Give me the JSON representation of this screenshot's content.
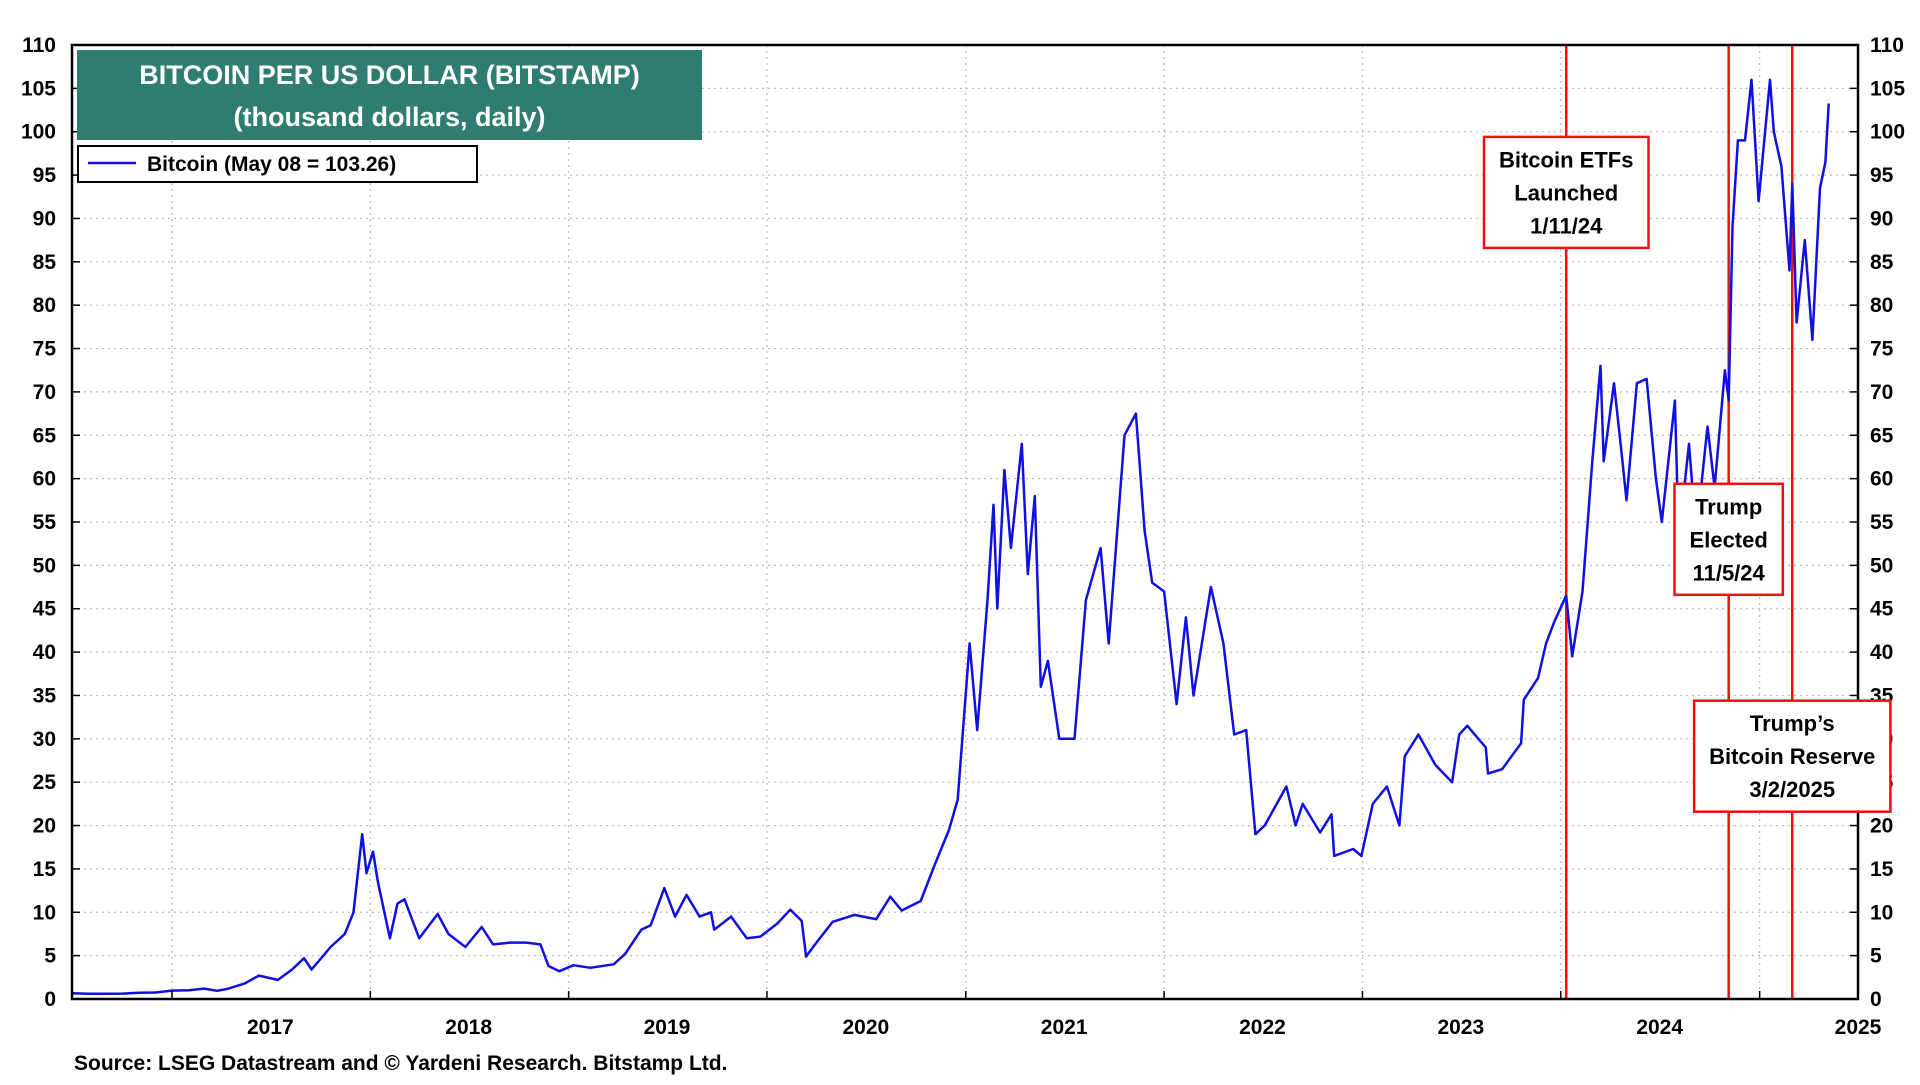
{
  "chart_data": {
    "type": "line",
    "title": "BITCOIN PER US DOLLAR (BITSTAMP)",
    "subtitle": "(thousand dollars, daily)",
    "source": "Source: LSEG Datastream and © Yardeni Research. Bitstamp Ltd.",
    "ylim": [
      0,
      110
    ],
    "y_ticks": [
      0,
      5,
      10,
      15,
      20,
      25,
      30,
      35,
      40,
      45,
      50,
      55,
      60,
      65,
      70,
      75,
      80,
      85,
      90,
      95,
      100,
      105,
      110
    ],
    "x_tick_labels": [
      "2017",
      "2018",
      "2019",
      "2020",
      "2021",
      "2022",
      "2023",
      "2024",
      "2025"
    ],
    "x_domain": [
      "2016-07-01",
      "2025-07-01"
    ],
    "grid": true,
    "legend_placement": "top-left",
    "colors": {
      "series": "#1010e0",
      "event_line": "#ee1111",
      "title_bg": "#2e7d6e",
      "title_text": "#ffffff"
    },
    "series": [
      {
        "name": "Bitcoin (May 08 = 103.26)",
        "points": [
          [
            "2016-07-01",
            0.67
          ],
          [
            "2016-08-01",
            0.6
          ],
          [
            "2016-09-01",
            0.6
          ],
          [
            "2016-10-01",
            0.62
          ],
          [
            "2016-11-01",
            0.72
          ],
          [
            "2016-12-01",
            0.75
          ],
          [
            "2017-01-01",
            0.97
          ],
          [
            "2017-02-01",
            1.0
          ],
          [
            "2017-03-01",
            1.2
          ],
          [
            "2017-03-25",
            0.95
          ],
          [
            "2017-04-15",
            1.2
          ],
          [
            "2017-05-15",
            1.8
          ],
          [
            "2017-06-10",
            2.7
          ],
          [
            "2017-07-15",
            2.2
          ],
          [
            "2017-08-10",
            3.4
          ],
          [
            "2017-09-01",
            4.7
          ],
          [
            "2017-09-15",
            3.4
          ],
          [
            "2017-10-20",
            6.0
          ],
          [
            "2017-11-15",
            7.5
          ],
          [
            "2017-12-01",
            10.0
          ],
          [
            "2017-12-17",
            19.0
          ],
          [
            "2017-12-25",
            14.5
          ],
          [
            "2018-01-06",
            17.0
          ],
          [
            "2018-01-15",
            13.5
          ],
          [
            "2018-02-06",
            7.0
          ],
          [
            "2018-02-20",
            11.0
          ],
          [
            "2018-03-05",
            11.5
          ],
          [
            "2018-04-01",
            7.0
          ],
          [
            "2018-05-05",
            9.8
          ],
          [
            "2018-05-25",
            7.5
          ],
          [
            "2018-06-25",
            6.0
          ],
          [
            "2018-07-25",
            8.3
          ],
          [
            "2018-08-15",
            6.3
          ],
          [
            "2018-09-15",
            6.5
          ],
          [
            "2018-10-15",
            6.5
          ],
          [
            "2018-11-10",
            6.3
          ],
          [
            "2018-11-25",
            3.8
          ],
          [
            "2018-12-15",
            3.2
          ],
          [
            "2019-01-10",
            3.9
          ],
          [
            "2019-02-10",
            3.6
          ],
          [
            "2019-03-25",
            4.0
          ],
          [
            "2019-04-15",
            5.2
          ],
          [
            "2019-05-15",
            8.0
          ],
          [
            "2019-06-01",
            8.5
          ],
          [
            "2019-06-26",
            12.8
          ],
          [
            "2019-07-16",
            9.5
          ],
          [
            "2019-08-06",
            12.0
          ],
          [
            "2019-08-30",
            9.5
          ],
          [
            "2019-09-20",
            10.0
          ],
          [
            "2019-09-26",
            8.0
          ],
          [
            "2019-10-27",
            9.5
          ],
          [
            "2019-11-25",
            7.0
          ],
          [
            "2019-12-20",
            7.2
          ],
          [
            "2020-01-20",
            8.7
          ],
          [
            "2020-02-13",
            10.3
          ],
          [
            "2020-03-05",
            9.0
          ],
          [
            "2020-03-13",
            4.9
          ],
          [
            "2020-04-01",
            6.5
          ],
          [
            "2020-05-01",
            8.9
          ],
          [
            "2020-06-10",
            9.7
          ],
          [
            "2020-07-20",
            9.2
          ],
          [
            "2020-08-15",
            11.8
          ],
          [
            "2020-09-05",
            10.2
          ],
          [
            "2020-10-10",
            11.3
          ],
          [
            "2020-11-05",
            15.5
          ],
          [
            "2020-12-01",
            19.5
          ],
          [
            "2020-12-17",
            23.0
          ],
          [
            "2021-01-08",
            41.0
          ],
          [
            "2021-01-22",
            31.0
          ],
          [
            "2021-02-10",
            46.0
          ],
          [
            "2021-02-21",
            57.0
          ],
          [
            "2021-02-28",
            45.0
          ],
          [
            "2021-03-13",
            61.0
          ],
          [
            "2021-03-25",
            52.0
          ],
          [
            "2021-04-14",
            64.0
          ],
          [
            "2021-04-25",
            49.0
          ],
          [
            "2021-05-08",
            58.0
          ],
          [
            "2021-05-19",
            36.0
          ],
          [
            "2021-06-01",
            39.0
          ],
          [
            "2021-06-22",
            30.0
          ],
          [
            "2021-07-20",
            30.0
          ],
          [
            "2021-08-10",
            46.0
          ],
          [
            "2021-09-06",
            52.0
          ],
          [
            "2021-09-21",
            41.0
          ],
          [
            "2021-10-20",
            65.0
          ],
          [
            "2021-11-10",
            67.5
          ],
          [
            "2021-11-26",
            54.0
          ],
          [
            "2021-12-10",
            48.0
          ],
          [
            "2022-01-01",
            47.0
          ],
          [
            "2022-01-24",
            34.0
          ],
          [
            "2022-02-10",
            44.0
          ],
          [
            "2022-02-24",
            35.0
          ],
          [
            "2022-03-28",
            47.5
          ],
          [
            "2022-04-20",
            41.0
          ],
          [
            "2022-05-10",
            30.5
          ],
          [
            "2022-06-01",
            31.0
          ],
          [
            "2022-06-18",
            19.0
          ],
          [
            "2022-07-05",
            20.0
          ],
          [
            "2022-08-14",
            24.5
          ],
          [
            "2022-08-31",
            20.0
          ],
          [
            "2022-09-13",
            22.5
          ],
          [
            "2022-10-15",
            19.2
          ],
          [
            "2022-11-05",
            21.3
          ],
          [
            "2022-11-10",
            16.5
          ],
          [
            "2022-12-15",
            17.3
          ],
          [
            "2022-12-30",
            16.5
          ],
          [
            "2023-01-20",
            22.5
          ],
          [
            "2023-02-15",
            24.5
          ],
          [
            "2023-03-10",
            20.0
          ],
          [
            "2023-03-20",
            28.0
          ],
          [
            "2023-04-14",
            30.5
          ],
          [
            "2023-05-15",
            27.0
          ],
          [
            "2023-06-15",
            25.0
          ],
          [
            "2023-06-28",
            30.5
          ],
          [
            "2023-07-13",
            31.5
          ],
          [
            "2023-08-16",
            29.0
          ],
          [
            "2023-08-20",
            26.0
          ],
          [
            "2023-09-15",
            26.5
          ],
          [
            "2023-10-20",
            29.5
          ],
          [
            "2023-10-25",
            34.5
          ],
          [
            "2023-11-20",
            37.0
          ],
          [
            "2023-12-05",
            41.0
          ],
          [
            "2023-12-20",
            43.5
          ],
          [
            "2024-01-11",
            46.5
          ],
          [
            "2024-01-22",
            39.5
          ],
          [
            "2024-02-10",
            47.0
          ],
          [
            "2024-02-28",
            62.0
          ],
          [
            "2024-03-14",
            73.0
          ],
          [
            "2024-03-20",
            62.0
          ],
          [
            "2024-04-08",
            71.0
          ],
          [
            "2024-04-20",
            64.0
          ],
          [
            "2024-05-01",
            57.5
          ],
          [
            "2024-05-20",
            71.0
          ],
          [
            "2024-06-07",
            71.5
          ],
          [
            "2024-06-24",
            60.0
          ],
          [
            "2024-07-05",
            55.0
          ],
          [
            "2024-07-29",
            69.0
          ],
          [
            "2024-08-05",
            53.0
          ],
          [
            "2024-08-24",
            64.0
          ],
          [
            "2024-09-06",
            53.5
          ],
          [
            "2024-09-27",
            66.0
          ],
          [
            "2024-10-10",
            59.0
          ],
          [
            "2024-10-29",
            72.5
          ],
          [
            "2024-11-05",
            69.0
          ],
          [
            "2024-11-12",
            89.0
          ],
          [
            "2024-11-22",
            99.0
          ],
          [
            "2024-12-05",
            99.0
          ],
          [
            "2024-12-17",
            106.0
          ],
          [
            "2024-12-30",
            92.0
          ],
          [
            "2025-01-20",
            106.0
          ],
          [
            "2025-01-27",
            100.0
          ],
          [
            "2025-02-10",
            96.0
          ],
          [
            "2025-02-25",
            84.0
          ],
          [
            "2025-03-02",
            94.0
          ],
          [
            "2025-03-10",
            78.0
          ],
          [
            "2025-03-25",
            87.5
          ],
          [
            "2025-04-08",
            76.0
          ],
          [
            "2025-04-22",
            93.5
          ],
          [
            "2025-05-02",
            96.5
          ],
          [
            "2025-05-08",
            103.26
          ]
        ]
      }
    ],
    "events": [
      {
        "date": "2024-01-11",
        "label_lines": [
          "Bitcoin ETFs",
          "Launched",
          "1/11/24"
        ],
        "label_y": 93
      },
      {
        "date": "2024-11-05",
        "label_lines": [
          "Trump",
          "Elected",
          "11/5/24"
        ],
        "label_y": 53
      },
      {
        "date": "2025-03-02",
        "label_lines": [
          "Trump’s",
          "Bitcoin Reserve",
          "3/2/2025"
        ],
        "label_y": 28
      }
    ]
  }
}
